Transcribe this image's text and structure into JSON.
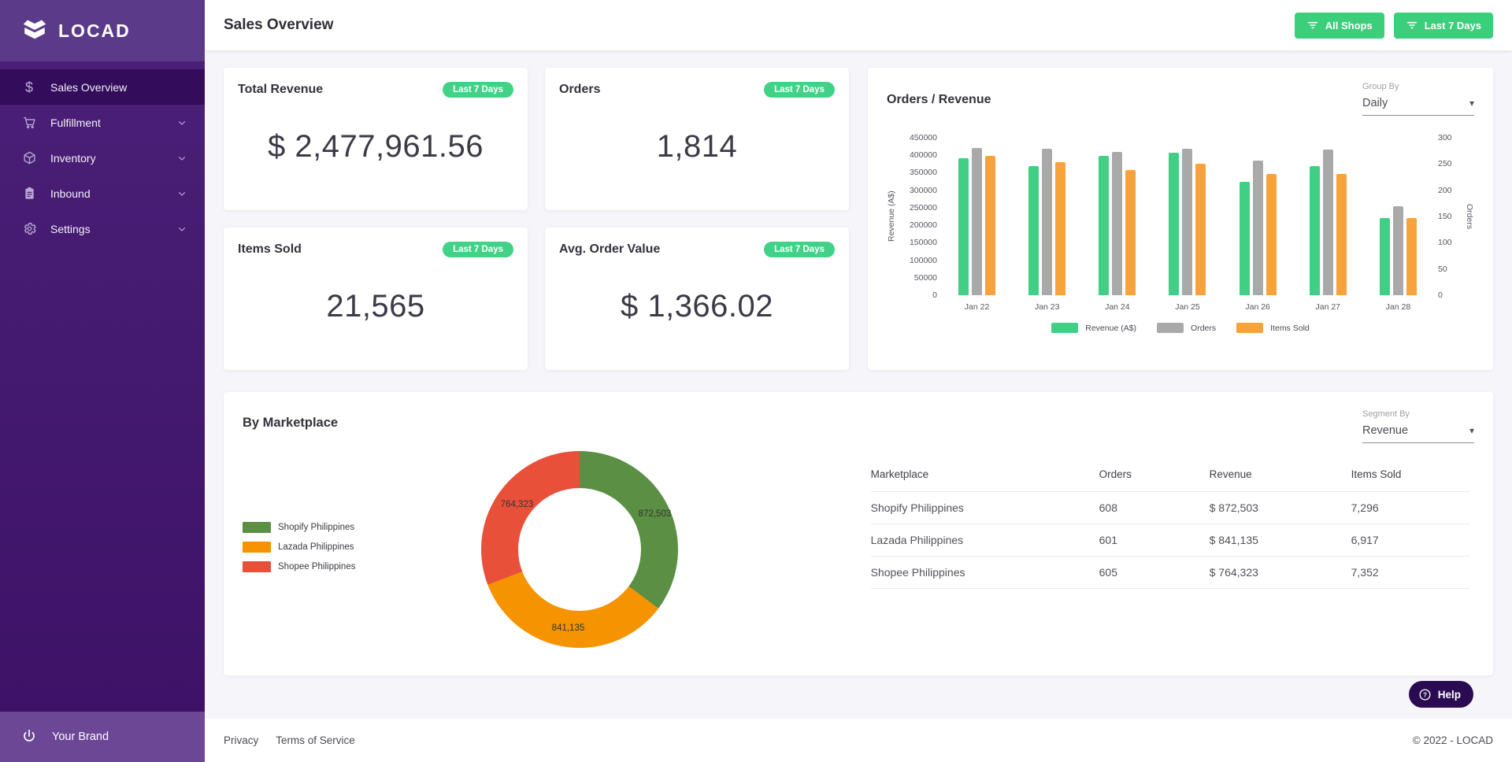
{
  "app": {
    "brand": "LOCAD",
    "your_brand": "Your Brand"
  },
  "sidebar": {
    "items": [
      {
        "label": "Sales Overview",
        "icon": "dollar",
        "active": true,
        "expandable": false
      },
      {
        "label": "Fulfillment",
        "icon": "cart",
        "active": false,
        "expandable": true
      },
      {
        "label": "Inventory",
        "icon": "cube",
        "active": false,
        "expandable": true
      },
      {
        "label": "Inbound",
        "icon": "clipboard",
        "active": false,
        "expandable": true
      },
      {
        "label": "Settings",
        "icon": "gear",
        "active": false,
        "expandable": true
      }
    ]
  },
  "header": {
    "title": "Sales Overview",
    "filters": [
      {
        "label": "All Shops"
      },
      {
        "label": "Last 7 Days"
      }
    ]
  },
  "kpis": [
    {
      "title": "Total Revenue",
      "badge": "Last 7 Days",
      "value": "$ 2,477,961.56"
    },
    {
      "title": "Orders",
      "badge": "Last 7 Days",
      "value": "1,814"
    },
    {
      "title": "Items Sold",
      "badge": "Last 7 Days",
      "value": "21,565"
    },
    {
      "title": "Avg. Order Value",
      "badge": "Last 7 Days",
      "value": "$ 1,366.02"
    }
  ],
  "orders_revenue": {
    "title": "Orders / Revenue",
    "group_by_label": "Group By",
    "group_by_value": "Daily",
    "chart_data": {
      "type": "bar",
      "categories": [
        "Jan 22",
        "Jan 23",
        "Jan 24",
        "Jan 25",
        "Jan 26",
        "Jan 27",
        "Jan 28"
      ],
      "series": [
        {
          "name": "Revenue (A$)",
          "color": "#40CF85",
          "axis": "left",
          "axis_max": 450000,
          "values": [
            391000,
            369000,
            398000,
            408000,
            323000,
            368000,
            220961
          ]
        },
        {
          "name": "Orders",
          "color": "#A9A9A9",
          "axis": "right",
          "axis_max": 300,
          "values": [
            280,
            279,
            273,
            279,
            257,
            277,
            169
          ]
        },
        {
          "name": "Items Sold",
          "color": "#F7A23B",
          "axis": "hidden",
          "axis_max": 4000,
          "values": [
            3533,
            3380,
            3190,
            3335,
            3081,
            3081,
            1965
          ]
        }
      ],
      "y_left": {
        "label": "Revenue (A$)",
        "ticks": [
          0,
          50000,
          100000,
          150000,
          200000,
          250000,
          300000,
          350000,
          400000,
          450000
        ]
      },
      "y_right": {
        "label": "Orders",
        "ticks": [
          0,
          50,
          100,
          150,
          200,
          250,
          300
        ]
      },
      "grid": false,
      "legend_position": "bottom"
    }
  },
  "by_marketplace": {
    "title": "By Marketplace",
    "segment_by_label": "Segment By",
    "segment_by_value": "Revenue",
    "chart_data": {
      "type": "pie",
      "labels": [
        "Shopify Philippines",
        "Lazada Philippines",
        "Shopee Philippines"
      ],
      "values": [
        872503,
        841135,
        764323
      ],
      "value_labels": [
        "872,503",
        "841,135",
        "764,323"
      ],
      "colors": [
        "#5B8F44",
        "#F59300",
        "#E8503A"
      ]
    },
    "table": {
      "headers": [
        "Marketplace",
        "Orders",
        "Revenue",
        "Items Sold"
      ],
      "rows": [
        [
          "Shopify Philippines",
          "608",
          "$ 872,503",
          "7,296"
        ],
        [
          "Lazada Philippines",
          "601",
          "$ 841,135",
          "6,917"
        ],
        [
          "Shopee Philippines",
          "605",
          "$ 764,323",
          "7,352"
        ]
      ]
    }
  },
  "help": {
    "label": "Help"
  },
  "footer": {
    "links": [
      "Privacy",
      "Terms of Service"
    ],
    "copyright": "© 2022 - LOCAD"
  },
  "colors": {
    "accent_green": "#3BCE7B",
    "sidebar": "#46186F",
    "sidebar_active": "#330C5C",
    "logo_block": "#5C3A8A",
    "brand_footer": "#6B4796",
    "help_bg": "#2A0B52"
  }
}
